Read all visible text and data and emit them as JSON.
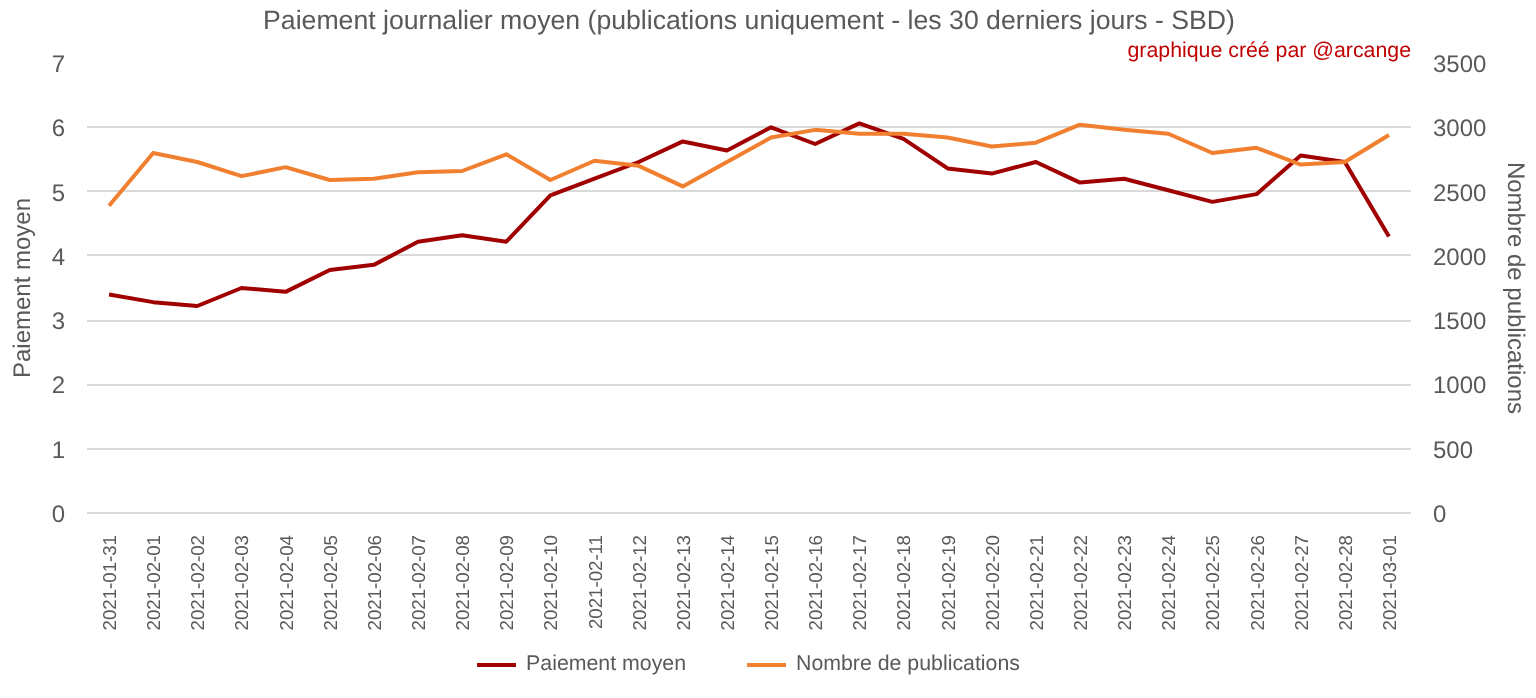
{
  "chart_data": {
    "type": "line",
    "title": "Paiement journalier moyen (publications uniquement - les 30 derniers jours - SBD)",
    "annotations": [
      "graphique créé par @arcange"
    ],
    "ylabel": "Paiement moyen",
    "y2label": "Nombre de publications",
    "categories": [
      "2021-01-31",
      "2021-02-01",
      "2021-02-02",
      "2021-02-03",
      "2021-02-04",
      "2021-02-05",
      "2021-02-06",
      "2021-02-07",
      "2021-02-08",
      "2021-02-09",
      "2021-02-10",
      "2021-02-11",
      "2021-02-12",
      "2021-02-13",
      "2021-02-14",
      "2021-02-15",
      "2021-02-16",
      "2021-02-17",
      "2021-02-18",
      "2021-02-19",
      "2021-02-20",
      "2021-02-21",
      "2021-02-22",
      "2021-02-23",
      "2021-02-24",
      "2021-02-25",
      "2021-02-26",
      "2021-02-27",
      "2021-02-28",
      "2021-03-01"
    ],
    "series": [
      {
        "name": "Paiement moyen",
        "color": "#a00000",
        "values": [
          3.4,
          3.28,
          3.22,
          3.5,
          3.44,
          3.78,
          3.86,
          4.22,
          4.32,
          4.22,
          4.94,
          5.2,
          5.46,
          5.78,
          5.64,
          6.0,
          5.74,
          6.06,
          5.82,
          5.36,
          5.28,
          5.46,
          5.14,
          5.2,
          5.02,
          4.84,
          4.96,
          5.56,
          5.46,
          4.3
        ]
      },
      {
        "name": "Nombre de publications",
        "color": "#f08030",
        "axis": "y2",
        "values": [
          2390,
          2800,
          2730,
          2620,
          2690,
          2590,
          2600,
          2650,
          2660,
          2790,
          2590,
          2740,
          2700,
          2540,
          2730,
          2920,
          2980,
          2950,
          2950,
          2920,
          2850,
          2880,
          3020,
          2980,
          2950,
          2800,
          2840,
          2710,
          2730,
          2940
        ]
      }
    ],
    "ylim": [
      0,
      7
    ],
    "yticks": [
      0,
      1,
      2,
      3,
      4,
      5,
      6,
      7
    ],
    "y2lim": [
      0,
      3500
    ],
    "y2ticks": [
      0,
      500,
      1000,
      1500,
      2000,
      2500,
      3000,
      3500
    ],
    "grid": "y",
    "legend": "bottom"
  }
}
